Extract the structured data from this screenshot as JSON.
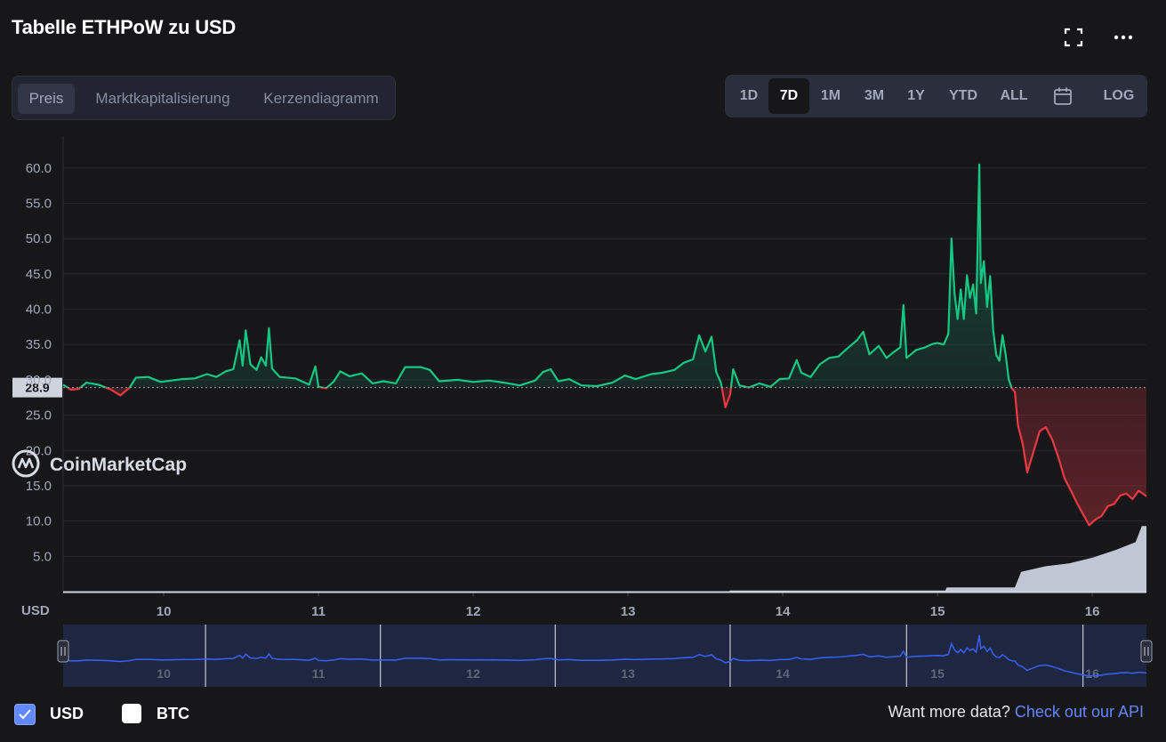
{
  "header": {
    "title": "Tabelle ETHPoW zu USD"
  },
  "tabs": [
    {
      "label": "Preis",
      "active": true
    },
    {
      "label": "Marktkapitalisierung",
      "active": false
    },
    {
      "label": "Kerzendiagramm",
      "active": false
    }
  ],
  "ranges": [
    {
      "label": "1D",
      "active": false
    },
    {
      "label": "7D",
      "active": true
    },
    {
      "label": "1M",
      "active": false
    },
    {
      "label": "3M",
      "active": false
    },
    {
      "label": "1Y",
      "active": false
    },
    {
      "label": "YTD",
      "active": false
    },
    {
      "label": "ALL",
      "active": false
    }
  ],
  "log_label": "LOG",
  "icons": {
    "fullscreen": "fullscreen-icon",
    "more": "more-icon",
    "calendar": "calendar-icon",
    "watermark": "coinmarketcap-logo-icon"
  },
  "watermark": "CoinMarketCap",
  "legend": [
    {
      "label": "USD",
      "checked": true
    },
    {
      "label": "BTC",
      "checked": false
    }
  ],
  "footer": {
    "prompt": "Want more data?",
    "link": "Check out our API"
  },
  "colors": {
    "up": "#16c784",
    "down": "#ea3943",
    "navigator_line": "#3861fb",
    "volume": "#cfd6e4",
    "accent": "#6188ff"
  },
  "chart_data": {
    "type": "line",
    "currency_label": "USD",
    "yticks": [
      5.0,
      10.0,
      15.0,
      20.0,
      25.0,
      30.0,
      35.0,
      40.0,
      45.0,
      50.0,
      55.0,
      60.0
    ],
    "ylim": [
      0,
      63.5
    ],
    "xlim": [
      9.35,
      16.35
    ],
    "xticks": [
      "10",
      "11",
      "12",
      "13",
      "14",
      "15",
      "16"
    ],
    "reference_price": 28.9,
    "reference_label": "28.9",
    "grid": true,
    "series": [
      {
        "values": [
          [
            9.35,
            29.3
          ],
          [
            9.4,
            28.6
          ],
          [
            9.45,
            28.7
          ],
          [
            9.5,
            29.6
          ],
          [
            9.58,
            29.3
          ],
          [
            9.66,
            28.6
          ],
          [
            9.72,
            27.8
          ],
          [
            9.78,
            28.9
          ],
          [
            9.82,
            30.3
          ],
          [
            9.9,
            30.4
          ],
          [
            9.98,
            29.7
          ],
          [
            10.05,
            29.9
          ],
          [
            10.12,
            30.1
          ],
          [
            10.2,
            30.2
          ],
          [
            10.28,
            30.8
          ],
          [
            10.34,
            30.4
          ],
          [
            10.4,
            31.2
          ],
          [
            10.45,
            31.5
          ],
          [
            10.49,
            35.6
          ],
          [
            10.51,
            32.0
          ],
          [
            10.53,
            37.0
          ],
          [
            10.56,
            32.2
          ],
          [
            10.6,
            31.4
          ],
          [
            10.63,
            33.2
          ],
          [
            10.66,
            32.0
          ],
          [
            10.68,
            37.3
          ],
          [
            10.7,
            31.6
          ],
          [
            10.75,
            30.4
          ],
          [
            10.85,
            30.2
          ],
          [
            10.94,
            29.3
          ],
          [
            10.98,
            31.9
          ],
          [
            11.0,
            29.0
          ],
          [
            11.05,
            28.8
          ],
          [
            11.1,
            29.8
          ],
          [
            11.14,
            31.2
          ],
          [
            11.2,
            30.5
          ],
          [
            11.28,
            30.9
          ],
          [
            11.35,
            29.5
          ],
          [
            11.42,
            29.8
          ],
          [
            11.5,
            29.5
          ],
          [
            11.56,
            31.8
          ],
          [
            11.66,
            31.8
          ],
          [
            11.72,
            31.4
          ],
          [
            11.78,
            29.8
          ],
          [
            11.9,
            30.0
          ],
          [
            12.0,
            29.7
          ],
          [
            12.1,
            29.9
          ],
          [
            12.2,
            29.6
          ],
          [
            12.3,
            29.2
          ],
          [
            12.4,
            29.9
          ],
          [
            12.45,
            31.1
          ],
          [
            12.5,
            31.5
          ],
          [
            12.55,
            29.8
          ],
          [
            12.62,
            30.1
          ],
          [
            12.7,
            29.2
          ],
          [
            12.8,
            29.1
          ],
          [
            12.9,
            29.6
          ],
          [
            12.98,
            30.6
          ],
          [
            13.05,
            30.1
          ],
          [
            13.15,
            30.8
          ],
          [
            13.22,
            31.0
          ],
          [
            13.3,
            31.4
          ],
          [
            13.36,
            32.4
          ],
          [
            13.42,
            32.9
          ],
          [
            13.46,
            36.3
          ],
          [
            13.5,
            34.0
          ],
          [
            13.54,
            36.1
          ],
          [
            13.57,
            31.1
          ],
          [
            13.6,
            29.6
          ],
          [
            13.63,
            26.1
          ],
          [
            13.66,
            27.9
          ],
          [
            13.68,
            31.5
          ],
          [
            13.72,
            29.2
          ],
          [
            13.78,
            28.9
          ],
          [
            13.85,
            29.5
          ],
          [
            13.92,
            29.0
          ],
          [
            13.98,
            30.1
          ],
          [
            14.04,
            30.2
          ],
          [
            14.09,
            32.8
          ],
          [
            14.12,
            31.0
          ],
          [
            14.18,
            30.4
          ],
          [
            14.24,
            32.2
          ],
          [
            14.3,
            33.1
          ],
          [
            14.36,
            33.3
          ],
          [
            14.42,
            34.5
          ],
          [
            14.48,
            35.6
          ],
          [
            14.52,
            36.8
          ],
          [
            14.56,
            33.6
          ],
          [
            14.62,
            34.8
          ],
          [
            14.67,
            33.1
          ],
          [
            14.71,
            33.8
          ],
          [
            14.76,
            34.6
          ],
          [
            14.78,
            40.6
          ],
          [
            14.8,
            33.1
          ],
          [
            14.86,
            34.2
          ],
          [
            14.92,
            34.6
          ],
          [
            14.97,
            35.1
          ],
          [
            15.0,
            35.2
          ],
          [
            15.04,
            35.0
          ],
          [
            15.07,
            36.5
          ],
          [
            15.09,
            50.0
          ],
          [
            15.11,
            42.3
          ],
          [
            15.13,
            38.6
          ],
          [
            15.15,
            42.8
          ],
          [
            15.17,
            38.6
          ],
          [
            15.19,
            44.8
          ],
          [
            15.21,
            41.6
          ],
          [
            15.23,
            43.5
          ],
          [
            15.25,
            39.4
          ],
          [
            15.27,
            60.5
          ],
          [
            15.28,
            43.7
          ],
          [
            15.3,
            46.8
          ],
          [
            15.32,
            40.3
          ],
          [
            15.34,
            44.7
          ],
          [
            15.36,
            37.0
          ],
          [
            15.38,
            33.5
          ],
          [
            15.4,
            32.7
          ],
          [
            15.42,
            36.3
          ],
          [
            15.44,
            33.6
          ],
          [
            15.46,
            30.1
          ],
          [
            15.48,
            28.8
          ],
          [
            15.5,
            28.3
          ],
          [
            15.52,
            23.5
          ],
          [
            15.55,
            21.0
          ],
          [
            15.58,
            16.9
          ],
          [
            15.62,
            19.8
          ],
          [
            15.66,
            22.7
          ],
          [
            15.7,
            23.3
          ],
          [
            15.74,
            21.6
          ],
          [
            15.78,
            19.1
          ],
          [
            15.82,
            16.1
          ],
          [
            15.86,
            14.4
          ],
          [
            15.9,
            12.6
          ],
          [
            15.95,
            10.6
          ],
          [
            15.98,
            9.4
          ],
          [
            16.02,
            10.2
          ],
          [
            16.06,
            10.7
          ],
          [
            16.1,
            12.1
          ],
          [
            16.14,
            12.4
          ],
          [
            16.18,
            13.6
          ],
          [
            16.22,
            13.9
          ],
          [
            16.26,
            13.1
          ],
          [
            16.3,
            14.3
          ],
          [
            16.35,
            13.5
          ]
        ]
      }
    ],
    "volume_profile": [
      [
        9.35,
        0
      ],
      [
        13.65,
        0
      ],
      [
        13.66,
        0.15
      ],
      [
        15.05,
        0.15
      ],
      [
        15.06,
        0.6
      ],
      [
        15.5,
        0.6
      ],
      [
        15.54,
        2.8
      ],
      [
        15.7,
        3.6
      ],
      [
        15.85,
        4.0
      ],
      [
        16.0,
        4.8
      ],
      [
        16.15,
        5.9
      ],
      [
        16.28,
        7.0
      ],
      [
        16.32,
        9.3
      ],
      [
        16.35,
        9.3
      ]
    ]
  }
}
